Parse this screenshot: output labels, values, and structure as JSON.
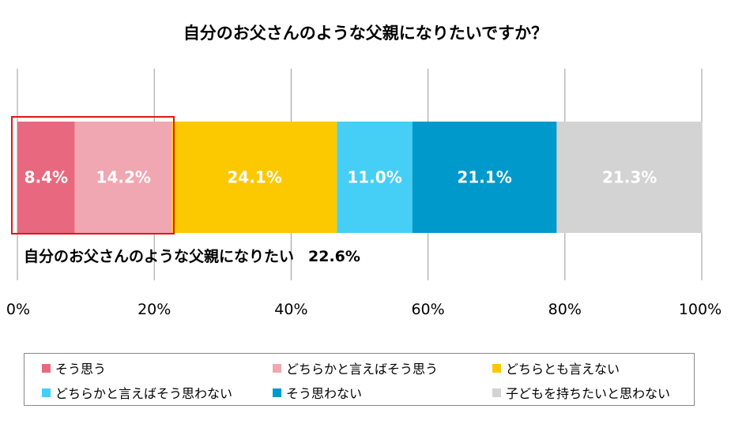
{
  "chart_data": {
    "type": "bar",
    "orientation": "horizontal-stacked",
    "title": "自分のお父さんのような父親になりたいですか？",
    "categories": [
      ""
    ],
    "series": [
      {
        "name": "そう思う",
        "values": [
          8.4
        ],
        "label": "8.4%",
        "color": "#e8697f"
      },
      {
        "name": "どちらかと言えばそう思う",
        "values": [
          14.2
        ],
        "label": "14.2%",
        "color": "#f0a7b2"
      },
      {
        "name": "どちらとも言えない",
        "values": [
          24.1
        ],
        "label": "24.1%",
        "color": "#fcc800"
      },
      {
        "name": "どちらかと言えばそう思わない",
        "values": [
          11.0
        ],
        "label": "11.0%",
        "color": "#45cff7"
      },
      {
        "name": "そう思わない",
        "values": [
          21.1
        ],
        "label": "21.1%",
        "color": "#0099cc"
      },
      {
        "name": "子どもを持ちたいと思わない",
        "values": [
          21.3
        ],
        "label": "21.3%",
        "color": "#d3d3d3"
      }
    ],
    "xlim": [
      0,
      100
    ],
    "xticks": [
      "0%",
      "20%",
      "40%",
      "60%",
      "80%",
      "100%"
    ],
    "grid": true,
    "legend_position": "bottom",
    "annotation": {
      "text": "自分のお父さんのような父親になりたい",
      "value": "22.6%"
    }
  }
}
